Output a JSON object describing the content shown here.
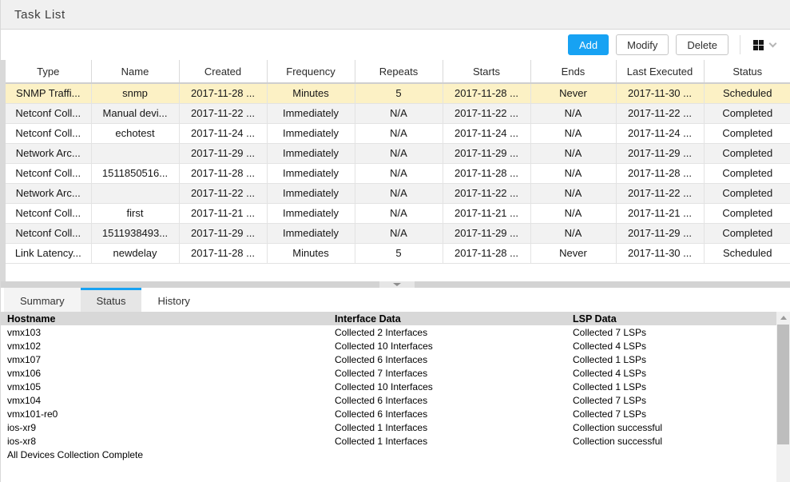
{
  "colors": {
    "accent": "#17a2f3",
    "selected_row": "#fcf1c5",
    "alt_row": "#f2f2f2",
    "status_header_bg": "#d8d8d8",
    "titlebar_bg": "#f0f0f0",
    "splitter_bg": "#d3d3d3",
    "scroll_thumb": "#bdbdbd"
  },
  "titlebar": {
    "title": "Task List"
  },
  "toolbar": {
    "add_label": "Add",
    "modify_label": "Modify",
    "delete_label": "Delete",
    "column_picker_icon": "grid-icon",
    "column_picker_chevron": "chevron-down-icon"
  },
  "task_table": {
    "columns": [
      "Type",
      "Name",
      "Created",
      "Frequency",
      "Repeats",
      "Starts",
      "Ends",
      "Last Executed",
      "Status"
    ],
    "rows": [
      {
        "selected": true,
        "cells": [
          "SNMP Traffi...",
          "snmp",
          "2017-11-28 ...",
          "Minutes",
          "5",
          "2017-11-28 ...",
          "Never",
          "2017-11-30 ...",
          "Scheduled"
        ]
      },
      {
        "selected": false,
        "cells": [
          "Netconf Coll...",
          "Manual devi...",
          "2017-11-22 ...",
          "Immediately",
          "N/A",
          "2017-11-22 ...",
          "N/A",
          "2017-11-22 ...",
          "Completed"
        ]
      },
      {
        "selected": false,
        "cells": [
          "Netconf Coll...",
          "echotest",
          "2017-11-24 ...",
          "Immediately",
          "N/A",
          "2017-11-24 ...",
          "N/A",
          "2017-11-24 ...",
          "Completed"
        ]
      },
      {
        "selected": false,
        "cells": [
          "Network Arc...",
          "",
          "2017-11-29 ...",
          "Immediately",
          "N/A",
          "2017-11-29 ...",
          "N/A",
          "2017-11-29 ...",
          "Completed"
        ]
      },
      {
        "selected": false,
        "cells": [
          "Netconf Coll...",
          "1511850516...",
          "2017-11-28 ...",
          "Immediately",
          "N/A",
          "2017-11-28 ...",
          "N/A",
          "2017-11-28 ...",
          "Completed"
        ]
      },
      {
        "selected": false,
        "cells": [
          "Network Arc...",
          "",
          "2017-11-22 ...",
          "Immediately",
          "N/A",
          "2017-11-22 ...",
          "N/A",
          "2017-11-22 ...",
          "Completed"
        ]
      },
      {
        "selected": false,
        "cells": [
          "Netconf Coll...",
          "first",
          "2017-11-21 ...",
          "Immediately",
          "N/A",
          "2017-11-21 ...",
          "N/A",
          "2017-11-21 ...",
          "Completed"
        ]
      },
      {
        "selected": false,
        "cells": [
          "Netconf Coll...",
          "1511938493...",
          "2017-11-29 ...",
          "Immediately",
          "N/A",
          "2017-11-29 ...",
          "N/A",
          "2017-11-29 ...",
          "Completed"
        ]
      },
      {
        "selected": false,
        "cells": [
          "Link Latency...",
          "newdelay",
          "2017-11-28 ...",
          "Minutes",
          "5",
          "2017-11-28 ...",
          "Never",
          "2017-11-30 ...",
          "Scheduled"
        ]
      }
    ]
  },
  "tabs": [
    {
      "label": "Summary",
      "active": false
    },
    {
      "label": "Status",
      "active": true
    },
    {
      "label": "History",
      "active": false
    }
  ],
  "status_panel": {
    "columns": [
      "Hostname",
      "Interface Data",
      "LSP Data"
    ],
    "rows": [
      [
        "vmx103",
        "Collected 2 Interfaces",
        "Collected 7 LSPs"
      ],
      [
        "vmx102",
        "Collected 10 Interfaces",
        "Collected 4 LSPs"
      ],
      [
        "vmx107",
        "Collected 6 Interfaces",
        "Collected 1 LSPs"
      ],
      [
        "vmx106",
        "Collected 7 Interfaces",
        "Collected 4 LSPs"
      ],
      [
        "vmx105",
        "Collected 10 Interfaces",
        "Collected 1 LSPs"
      ],
      [
        "vmx104",
        "Collected 6 Interfaces",
        "Collected 7 LSPs"
      ],
      [
        "vmx101-re0",
        "Collected 6 Interfaces",
        "Collected 7 LSPs"
      ],
      [
        "ios-xr9",
        "Collected 1 Interfaces",
        "Collection successful"
      ],
      [
        "ios-xr8",
        "Collected 1 Interfaces",
        "Collection successful"
      ]
    ],
    "footer": "All Devices Collection Complete"
  }
}
